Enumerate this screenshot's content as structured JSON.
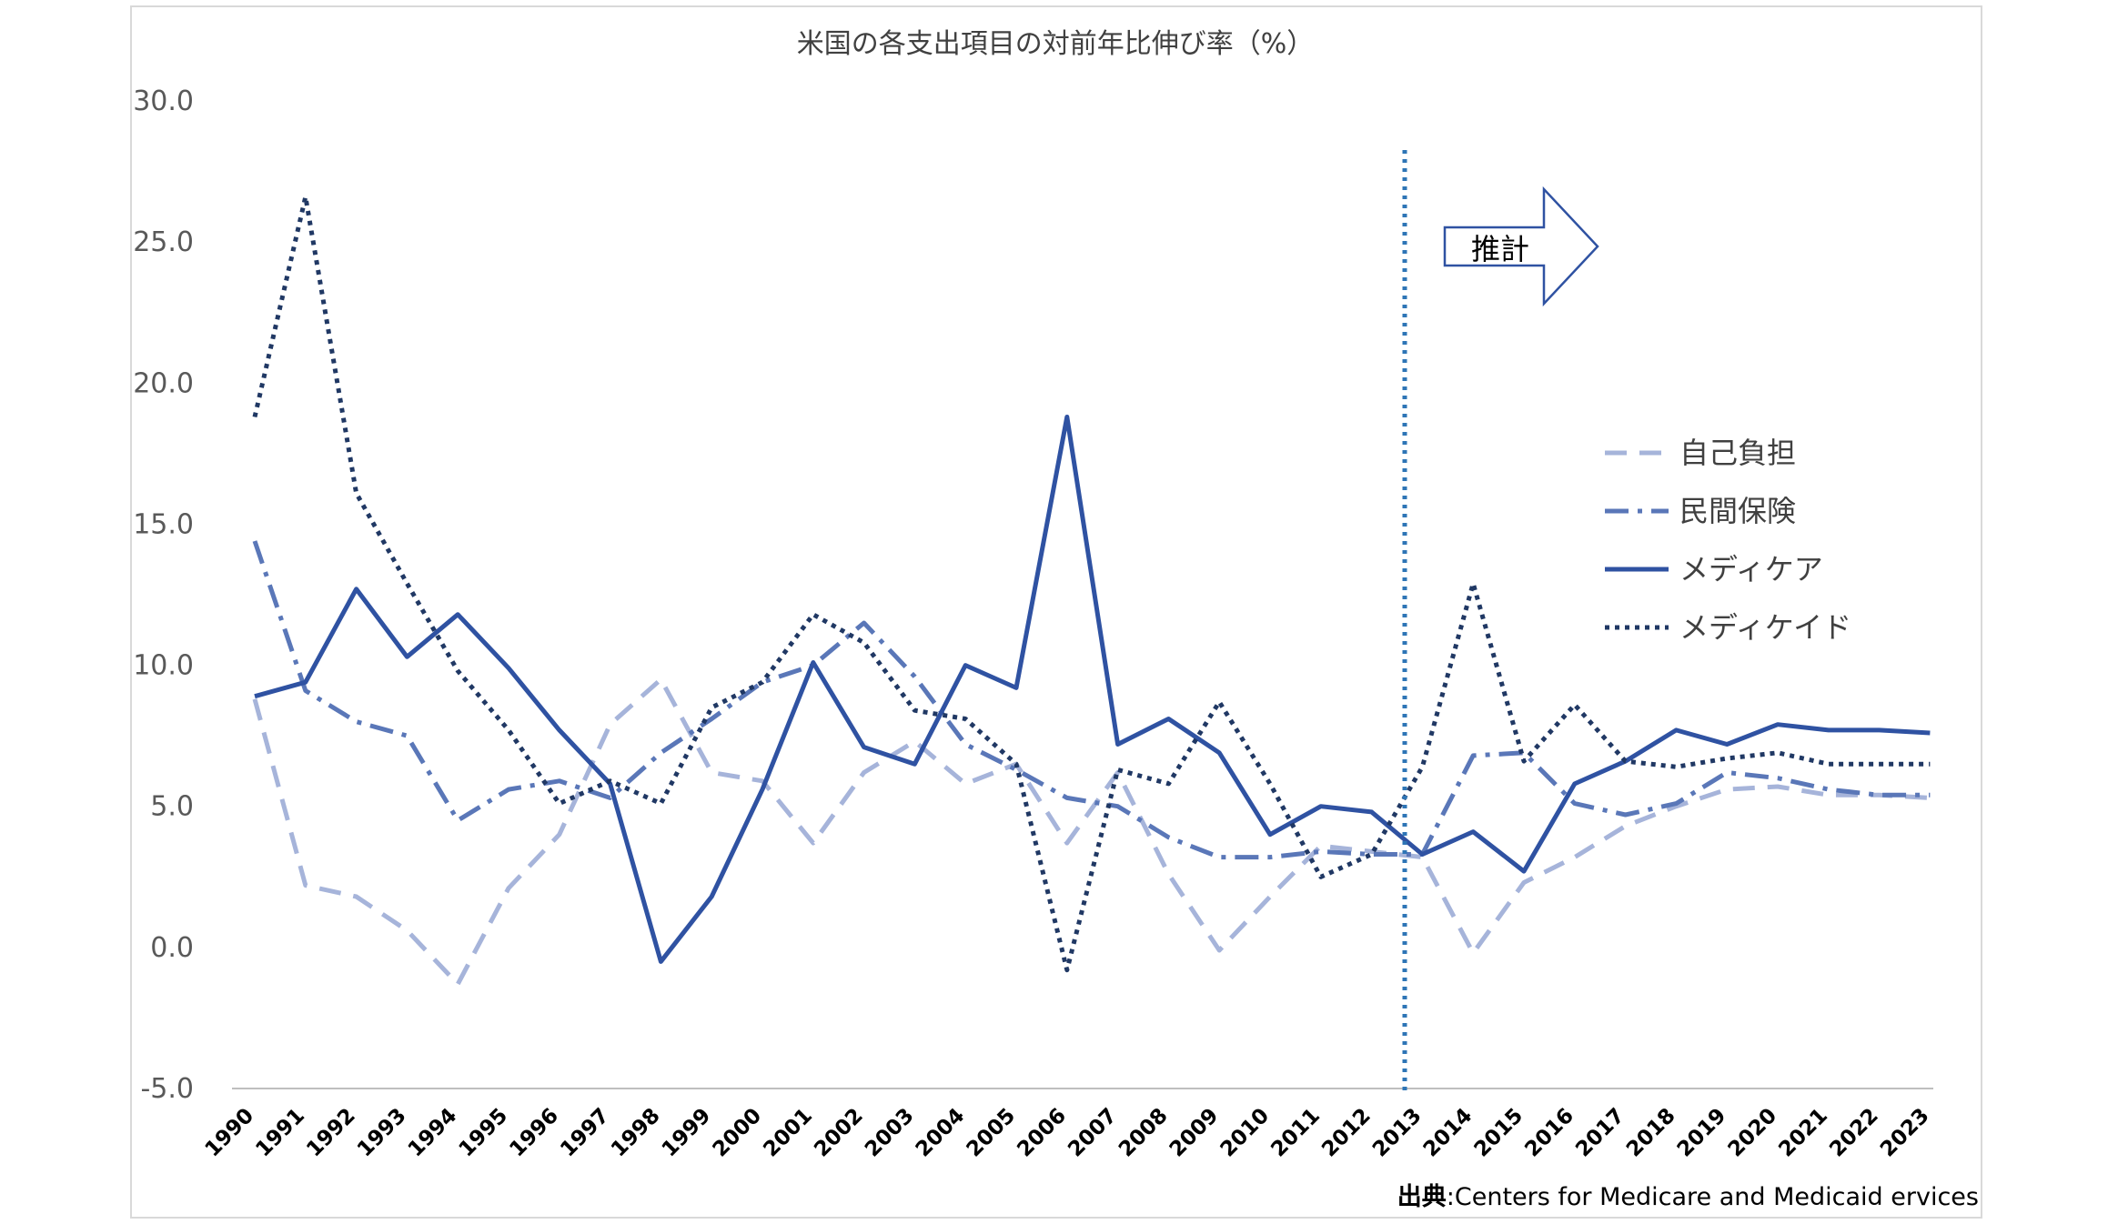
{
  "chart_data": {
    "type": "line",
    "title": "米国の各支出項目の対前年比伸び率（%）",
    "categories": [
      "1990",
      "1991",
      "1992",
      "1993",
      "1994",
      "1995",
      "1996",
      "1997",
      "1998",
      "1999",
      "2000",
      "2001",
      "2002",
      "2003",
      "2004",
      "2005",
      "2006",
      "2007",
      "2008",
      "2009",
      "2010",
      "2011",
      "2012",
      "2013",
      "2014",
      "2015",
      "2016",
      "2017",
      "2018",
      "2019",
      "2020",
      "2021",
      "2022",
      "2023"
    ],
    "ylim": [
      -5,
      30
    ],
    "yticks": [
      "30.0",
      "25.0",
      "20.0",
      "15.0",
      "10.0",
      "5.0",
      "0.0",
      "-5.0"
    ],
    "ytick_values": [
      30,
      25,
      20,
      15,
      10,
      5,
      0,
      -5
    ],
    "grid": false,
    "legend_position": "right",
    "series": [
      {
        "name": "自己負担",
        "color": "#a6b4da",
        "style": "dash",
        "values": [
          8.8,
          2.2,
          1.8,
          0.6,
          -1.3,
          2.1,
          4.0,
          7.9,
          9.5,
          6.2,
          5.9,
          3.7,
          6.2,
          7.3,
          5.8,
          6.5,
          3.7,
          6.2,
          2.6,
          -0.1,
          1.8,
          3.6,
          3.4,
          3.2,
          -0.2,
          2.3,
          3.2,
          4.3,
          5.0,
          5.6,
          5.7,
          5.4,
          5.4,
          5.3
        ]
      },
      {
        "name": "民間保険",
        "color": "#5a77b8",
        "style": "dashdot",
        "values": [
          14.4,
          9.1,
          8.0,
          7.5,
          4.5,
          5.6,
          5.9,
          5.3,
          6.9,
          8.1,
          9.4,
          10.0,
          11.5,
          9.6,
          7.2,
          6.3,
          5.3,
          5.0,
          3.9,
          3.2,
          3.2,
          3.4,
          3.3,
          3.3,
          6.8,
          6.9,
          5.1,
          4.7,
          5.1,
          6.2,
          6.0,
          5.6,
          5.4,
          5.4
        ]
      },
      {
        "name": "メディケア",
        "color": "#2f52a2",
        "style": "solid",
        "values": [
          8.9,
          9.4,
          12.7,
          10.3,
          11.8,
          9.9,
          7.7,
          5.8,
          -0.5,
          1.8,
          5.6,
          10.1,
          7.1,
          6.5,
          10.0,
          9.2,
          18.8,
          7.2,
          8.1,
          6.9,
          4.0,
          5.0,
          4.8,
          3.3,
          4.1,
          2.7,
          5.8,
          6.6,
          7.7,
          7.2,
          7.9,
          7.7,
          7.7,
          7.6
        ]
      },
      {
        "name": "メディケイド",
        "color": "#203864",
        "style": "dot",
        "values": [
          18.8,
          26.6,
          16.1,
          12.9,
          9.8,
          7.7,
          5.1,
          5.9,
          5.1,
          8.5,
          9.4,
          11.8,
          10.8,
          8.4,
          8.1,
          6.5,
          -0.8,
          6.3,
          5.8,
          8.7,
          5.8,
          2.5,
          3.3,
          6.4,
          12.9,
          6.6,
          8.6,
          6.6,
          6.4,
          6.7,
          6.9,
          6.5,
          6.5,
          6.5
        ]
      }
    ],
    "annotations": {
      "vline_at": "2013",
      "arrow_label": "推計",
      "source_label": "出典",
      "source_text": ":Centers for Medicare and Medicaid ervices"
    }
  }
}
